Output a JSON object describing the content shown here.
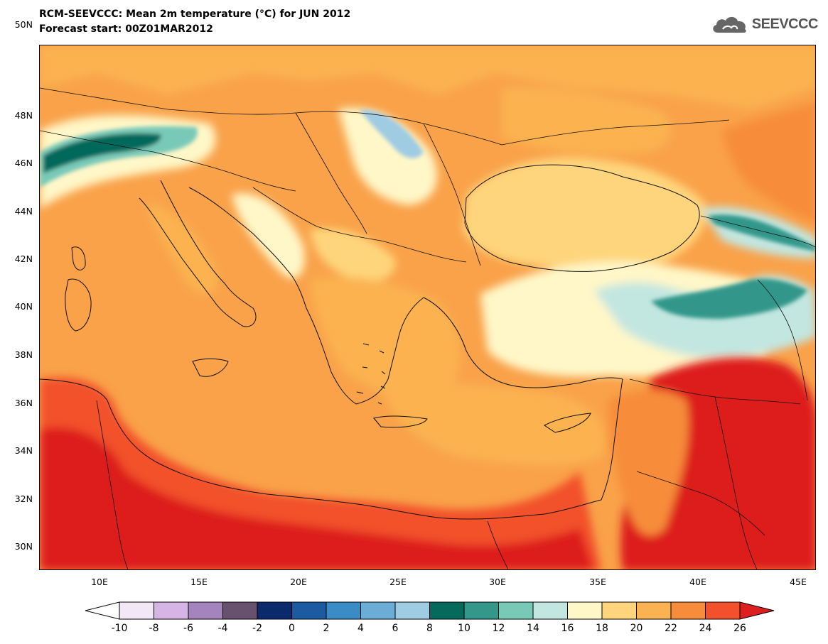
{
  "title": {
    "line1": "RCM-SEEVCCC: Mean 2m temperature (°C) for JUN 2012",
    "line2": "Forecast start: 00Z01MAR2012"
  },
  "logo": {
    "text": "SEEVCCC",
    "icon": "cloud-icon"
  },
  "axes": {
    "lat_labels": [
      "50N",
      "48N",
      "46N",
      "44N",
      "42N",
      "40N",
      "38N",
      "36N",
      "34N",
      "32N",
      "30N"
    ],
    "lon_labels": [
      "10E",
      "15E",
      "20E",
      "25E",
      "30E",
      "35E",
      "40E",
      "45E"
    ]
  },
  "colorbar": {
    "tick_labels": [
      "-10",
      "-8",
      "-6",
      "-4",
      "-2",
      "0",
      "2",
      "4",
      "6",
      "8",
      "10",
      "12",
      "14",
      "16",
      "18",
      "20",
      "22",
      "24",
      "26"
    ],
    "under_color": "#ffffff",
    "over_color": "#dd1f1f",
    "colors": [
      "#f2e6f7",
      "#d7b4e6",
      "#a583bd",
      "#68506f",
      "#0b2a6b",
      "#1c5aa2",
      "#3a8cc4",
      "#6cadd8",
      "#9fcbe3",
      "#05695b",
      "#33978a",
      "#79c9b8",
      "#c2e6e0",
      "#fff7c8",
      "#fed57c",
      "#fbb250",
      "#f78d3a",
      "#f2512c"
    ]
  },
  "map_colors": {
    "warm_base": "#f9a24a",
    "desert_red": "#dd1f1f",
    "coast_orange": "#f2512c",
    "sea_light": "#fbb250",
    "black_sea": "#fed57c",
    "highland_pale": "#fff7c8",
    "alpine_blue": "#c2e6e0",
    "alpine_teal": "#79c9b8",
    "alpine_dark": "#05695b"
  }
}
